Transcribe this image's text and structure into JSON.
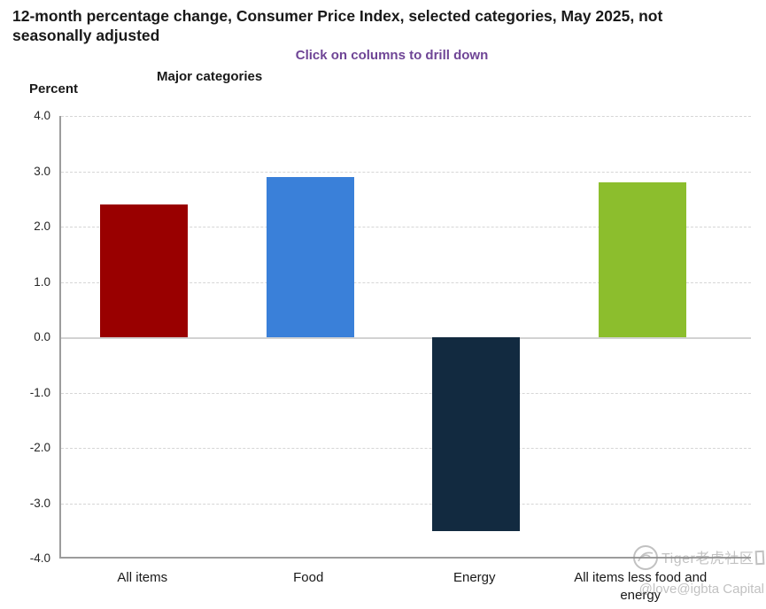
{
  "header": {
    "title": "12-month percentage change, Consumer Price Index, selected categories, May 2025, not seasonally adjusted",
    "subtitle": "Click on columns to drill down"
  },
  "labels": {
    "axis_group_title": "Major categories",
    "y_axis_unit": "Percent"
  },
  "chart_data": {
    "type": "bar",
    "title": "12-month percentage change, Consumer Price Index, selected categories, May 2025, not seasonally adjusted",
    "categories": [
      "All items",
      "Food",
      "Energy",
      "All items less food and energy"
    ],
    "values": [
      2.4,
      2.9,
      -3.5,
      2.8
    ],
    "colors": [
      "#990000",
      "#3a80d9",
      "#122a40",
      "#8cbe2d"
    ],
    "xlabel": "Major categories",
    "ylabel": "Percent",
    "ylim": [
      -4.0,
      4.0
    ],
    "ytick_step": 1.0,
    "ytick_labels": [
      "4.0",
      "3.0",
      "2.0",
      "1.0",
      "0.0",
      "-1.0",
      "-2.0",
      "-3.0",
      "-4.0"
    ],
    "grid": "horizontal-dashed",
    "legend": "none"
  },
  "colors": {
    "subtitle": "#6f4596",
    "axis": "#9c9c9c",
    "gridline": "#d6d6d6",
    "zero_line": "#d2d2d2",
    "bars": [
      "#990000",
      "#3a80d9",
      "#122a40",
      "#8cbe2d"
    ]
  },
  "watermark": {
    "line1": "Tiger老虎社区",
    "line2": "@love@igbta Capital"
  }
}
